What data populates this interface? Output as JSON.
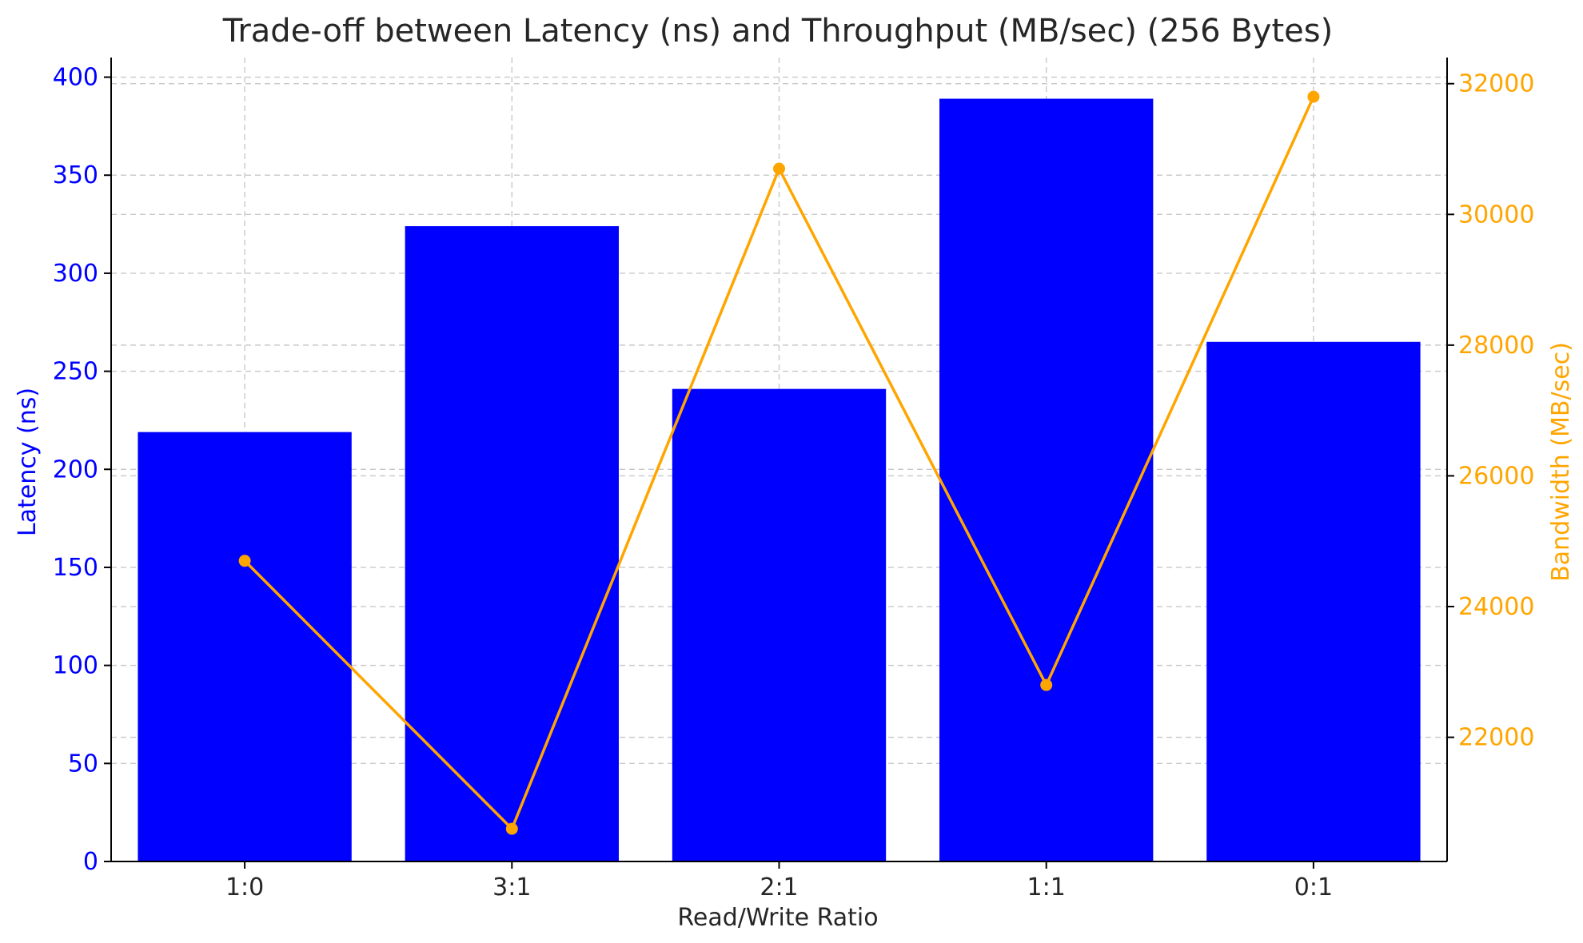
{
  "chart_data": {
    "type": "bar",
    "title": "Trade-off between Latency (ns) and Throughput (MB/sec) (256 Bytes)",
    "xlabel": "Read/Write Ratio",
    "categories": [
      "1:0",
      "3:1",
      "2:1",
      "1:1",
      "0:1"
    ],
    "series": [
      {
        "type": "bar",
        "axis": "left",
        "values": [
          219,
          324,
          241,
          389,
          265
        ],
        "color": "#0000ff"
      },
      {
        "type": "line",
        "axis": "right",
        "values": [
          24700,
          20600,
          30700,
          22800,
          31800
        ],
        "color": "#ffa500"
      }
    ],
    "ylabel": "Latency (ns)",
    "ylim": [
      0,
      410
    ],
    "yticks": [
      0,
      50,
      100,
      150,
      200,
      250,
      300,
      350,
      400
    ],
    "y2label": "Bandwidth (MB/sec)",
    "y2lim": [
      20100,
      32400
    ],
    "y2ticks": [
      22000,
      24000,
      26000,
      28000,
      30000,
      32000
    ],
    "grid": true,
    "colors": {
      "left_axis": "#0000ff",
      "right_axis": "#ffa500",
      "title": "#262626"
    }
  }
}
